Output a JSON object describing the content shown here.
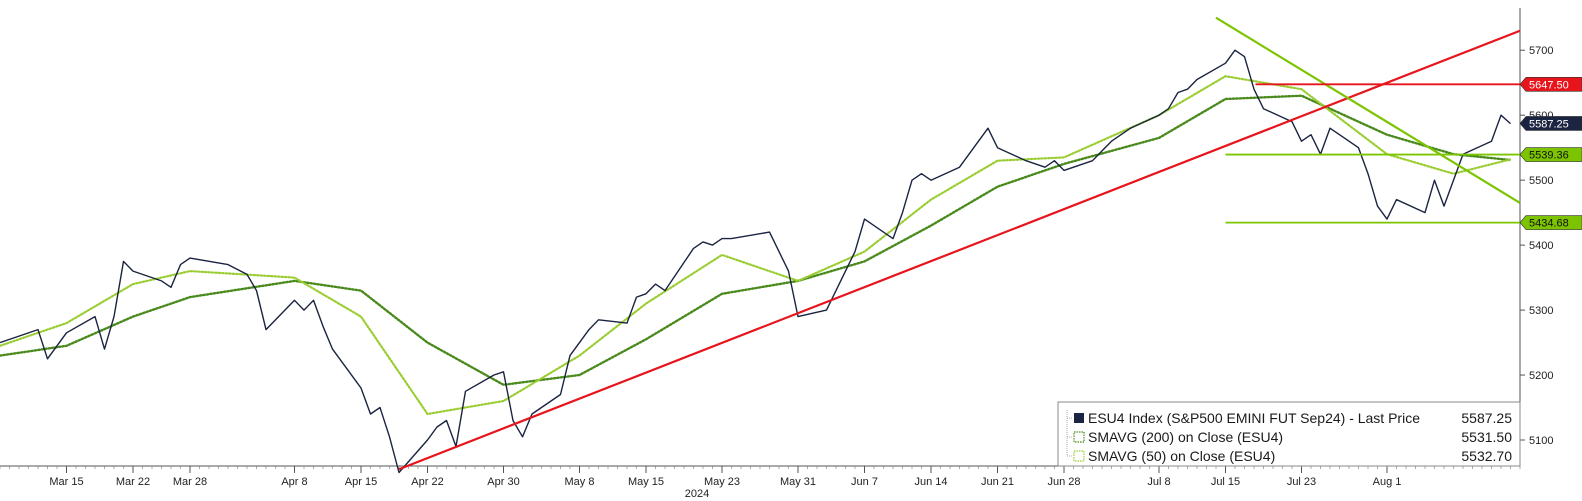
{
  "chart_data": {
    "type": "line",
    "title": "",
    "xlabel": "2024",
    "ylabel": "",
    "x_ticks": [
      "Mar 15",
      "Mar 22",
      "Mar 28",
      "Apr 8",
      "Apr 15",
      "Apr 22",
      "Apr 30",
      "May 8",
      "May 15",
      "May 23",
      "May 31",
      "Jun 7",
      "Jun 14",
      "Jun 21",
      "Jun 28",
      "Jul 8",
      "Jul 15",
      "Jul 23",
      "Aug 1"
    ],
    "y_ticks": [
      5100,
      5200,
      5300,
      5400,
      5500,
      5600,
      5700
    ],
    "ylim": [
      5060,
      5765
    ],
    "axis_position": "right",
    "grid": false,
    "legend_position": "bottom-right",
    "legend": [
      {
        "label": "ESU4 Index (S&P500 EMINI FUT  Sep24) - Last Price",
        "value": "5587.25",
        "color": "#1b2440"
      },
      {
        "label": "SMAVG (200)  on Close (ESU4)",
        "value": "5531.50",
        "color": "#4a8a1c"
      },
      {
        "label": "SMAVG (50)  on Close (ESU4)",
        "value": "5532.70",
        "color": "#9acd32"
      }
    ],
    "series": [
      {
        "name": "ESU4 Index (S&P500 EMINI FUT  Sep24) - Last Price",
        "color": "#1b2440",
        "points": [
          [
            "Mar 8",
            5250
          ],
          [
            "Mar 12",
            5270
          ],
          [
            "Mar 13",
            5225
          ],
          [
            "Mar 15",
            5265
          ],
          [
            "Mar 18",
            5290
          ],
          [
            "Mar 19",
            5240
          ],
          [
            "Mar 20",
            5290
          ],
          [
            "Mar 21",
            5375
          ],
          [
            "Mar 22",
            5360
          ],
          [
            "Mar 25",
            5345
          ],
          [
            "Mar 26",
            5335
          ],
          [
            "Mar 27",
            5370
          ],
          [
            "Mar 28",
            5380
          ],
          [
            "Apr 1",
            5370
          ],
          [
            "Apr 3",
            5355
          ],
          [
            "Apr 4",
            5330
          ],
          [
            "Apr 5",
            5270
          ],
          [
            "Apr 8",
            5315
          ],
          [
            "Apr 9",
            5300
          ],
          [
            "Apr 10",
            5315
          ],
          [
            "Apr 11",
            5275
          ],
          [
            "Apr 12",
            5240
          ],
          [
            "Apr 15",
            5180
          ],
          [
            "Apr 16",
            5140
          ],
          [
            "Apr 17",
            5150
          ],
          [
            "Apr 18",
            5105
          ],
          [
            "Apr 19",
            5050
          ],
          [
            "Apr 22",
            5100
          ],
          [
            "Apr 23",
            5120
          ],
          [
            "Apr 24",
            5130
          ],
          [
            "Apr 25",
            5090
          ],
          [
            "Apr 26",
            5175
          ],
          [
            "Apr 29",
            5200
          ],
          [
            "Apr 30",
            5205
          ],
          [
            "May 1",
            5130
          ],
          [
            "May 2",
            5105
          ],
          [
            "May 3",
            5140
          ],
          [
            "May 6",
            5170
          ],
          [
            "May 7",
            5230
          ],
          [
            "May 8",
            5250
          ],
          [
            "May 9",
            5270
          ],
          [
            "May 10",
            5285
          ],
          [
            "May 13",
            5280
          ],
          [
            "May 14",
            5320
          ],
          [
            "May 15",
            5325
          ],
          [
            "May 16",
            5340
          ],
          [
            "May 17",
            5330
          ],
          [
            "May 20",
            5395
          ],
          [
            "May 21",
            5405
          ],
          [
            "May 22",
            5400
          ],
          [
            "May 23",
            5410
          ],
          [
            "May 24",
            5410
          ],
          [
            "May 28",
            5420
          ],
          [
            "May 29",
            5390
          ],
          [
            "May 30",
            5360
          ],
          [
            "May 31",
            5290
          ],
          [
            "Jun 3",
            5300
          ],
          [
            "Jun 4",
            5330
          ],
          [
            "Jun 5",
            5360
          ],
          [
            "Jun 6",
            5390
          ],
          [
            "Jun 7",
            5440
          ],
          [
            "Jun 10",
            5410
          ],
          [
            "Jun 11",
            5450
          ],
          [
            "Jun 12",
            5500
          ],
          [
            "Jun 13",
            5510
          ],
          [
            "Jun 14",
            5500
          ],
          [
            "Jun 17",
            5520
          ],
          [
            "Jun 18",
            5540
          ],
          [
            "Jun 20",
            5580
          ],
          [
            "Jun 21",
            5550
          ],
          [
            "Jun 24",
            5530
          ],
          [
            "Jun 25",
            5525
          ],
          [
            "Jun 26",
            5520
          ],
          [
            "Jun 27",
            5530
          ],
          [
            "Jun 28",
            5515
          ],
          [
            "Jul 1",
            5530
          ],
          [
            "Jul 2",
            5545
          ],
          [
            "Jul 3",
            5560
          ],
          [
            "Jul 5",
            5580
          ],
          [
            "Jul 8",
            5600
          ],
          [
            "Jul 9",
            5610
          ],
          [
            "Jul 10",
            5635
          ],
          [
            "Jul 11",
            5640
          ],
          [
            "Jul 12",
            5655
          ],
          [
            "Jul 15",
            5680
          ],
          [
            "Jul 16",
            5700
          ],
          [
            "Jul 17",
            5690
          ],
          [
            "Jul 18",
            5640
          ],
          [
            "Jul 19",
            5610
          ],
          [
            "Jul 22",
            5590
          ],
          [
            "Jul 23",
            5560
          ],
          [
            "Jul 24",
            5570
          ],
          [
            "Jul 25",
            5540
          ],
          [
            "Jul 26",
            5580
          ],
          [
            "Jul 29",
            5550
          ],
          [
            "Jul 30",
            5510
          ],
          [
            "Jul 31",
            5460
          ],
          [
            "Aug 1",
            5440
          ],
          [
            "Aug 2",
            5470
          ],
          [
            "Aug 5",
            5450
          ],
          [
            "Aug 6",
            5500
          ],
          [
            "Aug 7",
            5460
          ],
          [
            "Aug 8",
            5500
          ],
          [
            "Aug 9",
            5540
          ],
          [
            "Aug 12",
            5560
          ],
          [
            "Aug 13",
            5600
          ],
          [
            "Aug 14",
            5587
          ]
        ]
      },
      {
        "name": "SMAVG (200)  on Close (ESU4)",
        "color": "#4a8a1c",
        "points": [
          [
            "Mar 8",
            5230
          ],
          [
            "Mar 15",
            5245
          ],
          [
            "Mar 22",
            5290
          ],
          [
            "Mar 28",
            5320
          ],
          [
            "Apr 8",
            5345
          ],
          [
            "Apr 15",
            5330
          ],
          [
            "Apr 22",
            5250
          ],
          [
            "Apr 30",
            5185
          ],
          [
            "May 8",
            5200
          ],
          [
            "May 15",
            5255
          ],
          [
            "May 23",
            5325
          ],
          [
            "May 31",
            5345
          ],
          [
            "Jun 7",
            5375
          ],
          [
            "Jun 14",
            5430
          ],
          [
            "Jun 21",
            5490
          ],
          [
            "Jun 28",
            5525
          ],
          [
            "Jul 8",
            5565
          ],
          [
            "Jul 15",
            5625
          ],
          [
            "Jul 23",
            5630
          ],
          [
            "Aug 1",
            5570
          ],
          [
            "Aug 8",
            5540
          ],
          [
            "Aug 14",
            5531
          ]
        ]
      },
      {
        "name": "SMAVG (50)  on Close (ESU4)",
        "color": "#9acd32",
        "points": [
          [
            "Mar 8",
            5245
          ],
          [
            "Mar 15",
            5280
          ],
          [
            "Mar 22",
            5340
          ],
          [
            "Mar 28",
            5360
          ],
          [
            "Apr 8",
            5350
          ],
          [
            "Apr 15",
            5290
          ],
          [
            "Apr 22",
            5140
          ],
          [
            "Apr 30",
            5160
          ],
          [
            "May 8",
            5230
          ],
          [
            "May 15",
            5310
          ],
          [
            "May 23",
            5385
          ],
          [
            "May 31",
            5345
          ],
          [
            "Jun 7",
            5390
          ],
          [
            "Jun 14",
            5470
          ],
          [
            "Jun 21",
            5530
          ],
          [
            "Jun 28",
            5535
          ],
          [
            "Jul 8",
            5600
          ],
          [
            "Jul 15",
            5660
          ],
          [
            "Jul 23",
            5640
          ],
          [
            "Aug 1",
            5540
          ],
          [
            "Aug 8",
            5510
          ],
          [
            "Aug 14",
            5532
          ]
        ]
      }
    ],
    "annotations": {
      "trend_lines": [
        {
          "color": "#e8141c",
          "from": [
            "Apr 19",
            5055
          ],
          "to": [
            "Aug 15",
            5730
          ]
        },
        {
          "color": "#7cc400",
          "from": [
            "Jul 14",
            5750
          ],
          "to": [
            "Aug 15",
            5465
          ]
        }
      ],
      "horizontal_levels": [
        {
          "value": 5647.5,
          "label": "5647.50",
          "color": "#e8141c",
          "from": "Jul 15"
        },
        {
          "value": 5539.36,
          "label": "5539.36",
          "color": "#7cc400",
          "from": "Jul 15"
        },
        {
          "value": 5434.68,
          "label": "5434.68",
          "color": "#7cc400",
          "from": "Jul 15"
        }
      ],
      "last_price_tag": {
        "value": 5587.25,
        "label": "5587.25",
        "color": "#1b2440"
      }
    }
  }
}
